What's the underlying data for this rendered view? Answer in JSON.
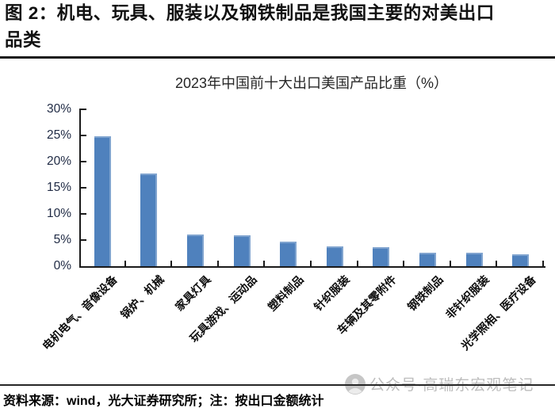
{
  "doc": {
    "title_lines": [
      "图 2：机电、玩具、服装以及钢铁制品是我国主要的对美出口",
      "品类"
    ]
  },
  "chart_data": {
    "type": "bar",
    "title": "2023年中国前十大出口美国产品比重（%）",
    "categories": [
      "电机电气、音像设备",
      "锅炉、机械",
      "家具灯具",
      "玩具游戏、运动品",
      "塑料制品",
      "针织服装",
      "车辆及其零附件",
      "钢铁制品",
      "非针织服装",
      "光学照相、医疗设备"
    ],
    "values": [
      24.9,
      17.8,
      6.1,
      5.9,
      4.7,
      3.8,
      3.6,
      2.6,
      2.5,
      2.3
    ],
    "xlabel": "",
    "ylabel": "",
    "ylim": [
      0,
      30
    ],
    "ytick_labels": [
      "0%",
      "5%",
      "10%",
      "15%",
      "20%",
      "25%",
      "30%"
    ],
    "grid": "off",
    "legend": "none",
    "bar_color": "#4f81bd"
  },
  "watermark": {
    "icon": "avatar-icon",
    "text": "公众号·高瑞东宏观笔记"
  },
  "footer": {
    "source_note": "资料来源：wind，光大证券研究所；注：按出口金额统计"
  }
}
